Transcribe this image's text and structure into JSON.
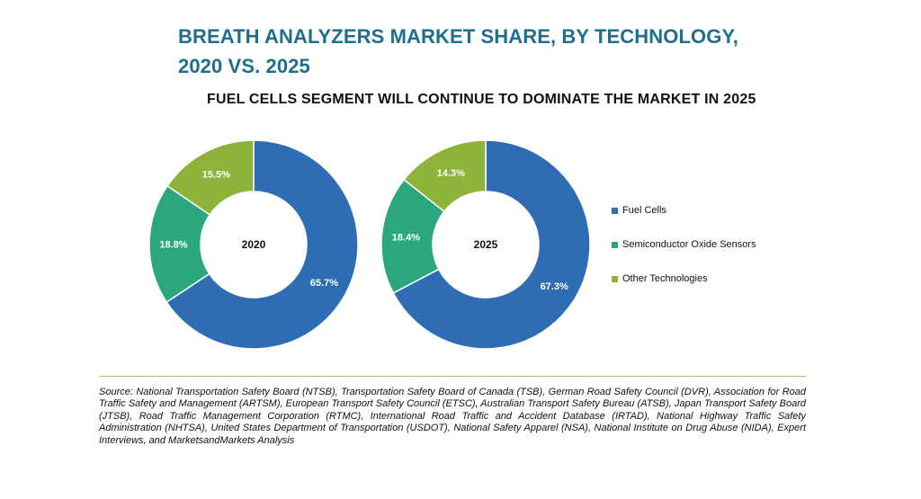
{
  "header": {
    "title_line1": "BREATH ANALYZERS MARKET SHARE, BY TECHNOLOGY,",
    "title_line2": "2020 VS. 2025",
    "subtitle": "FUEL CELLS SEGMENT WILL CONTINUE TO DOMINATE THE MARKET IN 2025"
  },
  "chart_data": [
    {
      "type": "pie",
      "center_label": "2020",
      "categories": [
        "Fuel Cells",
        "Semiconductor Oxide Sensors",
        "Other Technologies"
      ],
      "values": [
        65.7,
        18.8,
        15.5
      ],
      "labels": [
        "65.7%",
        "18.8%",
        "15.5%"
      ],
      "colors": [
        "#2e6db4",
        "#2aa77e",
        "#8db33a"
      ]
    },
    {
      "type": "pie",
      "center_label": "2025",
      "categories": [
        "Fuel Cells",
        "Semiconductor Oxide Sensors",
        "Other Technologies"
      ],
      "values": [
        67.3,
        18.4,
        14.3
      ],
      "labels": [
        "67.3%",
        "18.4%",
        "14.3%"
      ],
      "colors": [
        "#2e6db4",
        "#2aa77e",
        "#8db33a"
      ]
    }
  ],
  "legend": {
    "items": [
      {
        "label": "Fuel Cells",
        "color": "#2e6db4"
      },
      {
        "label": "Semiconductor Oxide Sensors",
        "color": "#2aa77e"
      },
      {
        "label": "Other Technologies",
        "color": "#8db33a"
      }
    ]
  },
  "source": "Source: National Transportation Safety Board (NTSB), Transportation Safety Board of Canada (TSB), German Road Safety Council (DVR), Association for Road Traffic Safety and Management (ARTSM), European Transport Safety Council (ETSC), Australian Transport Safety Bureau (ATSB), Japan Transport Safety Board (JTSB), Road Traffic Management Corporation (RTMC), International Road Traffic and Accident Database (IRTAD), National Highway Traffic Safety Administration (NHTSA), United States Department of Transportation (USDOT), National Safety Apparel (NSA), National Institute on Drug Abuse (NIDA), Expert Interviews, and MarketsandMarkets Analysis"
}
